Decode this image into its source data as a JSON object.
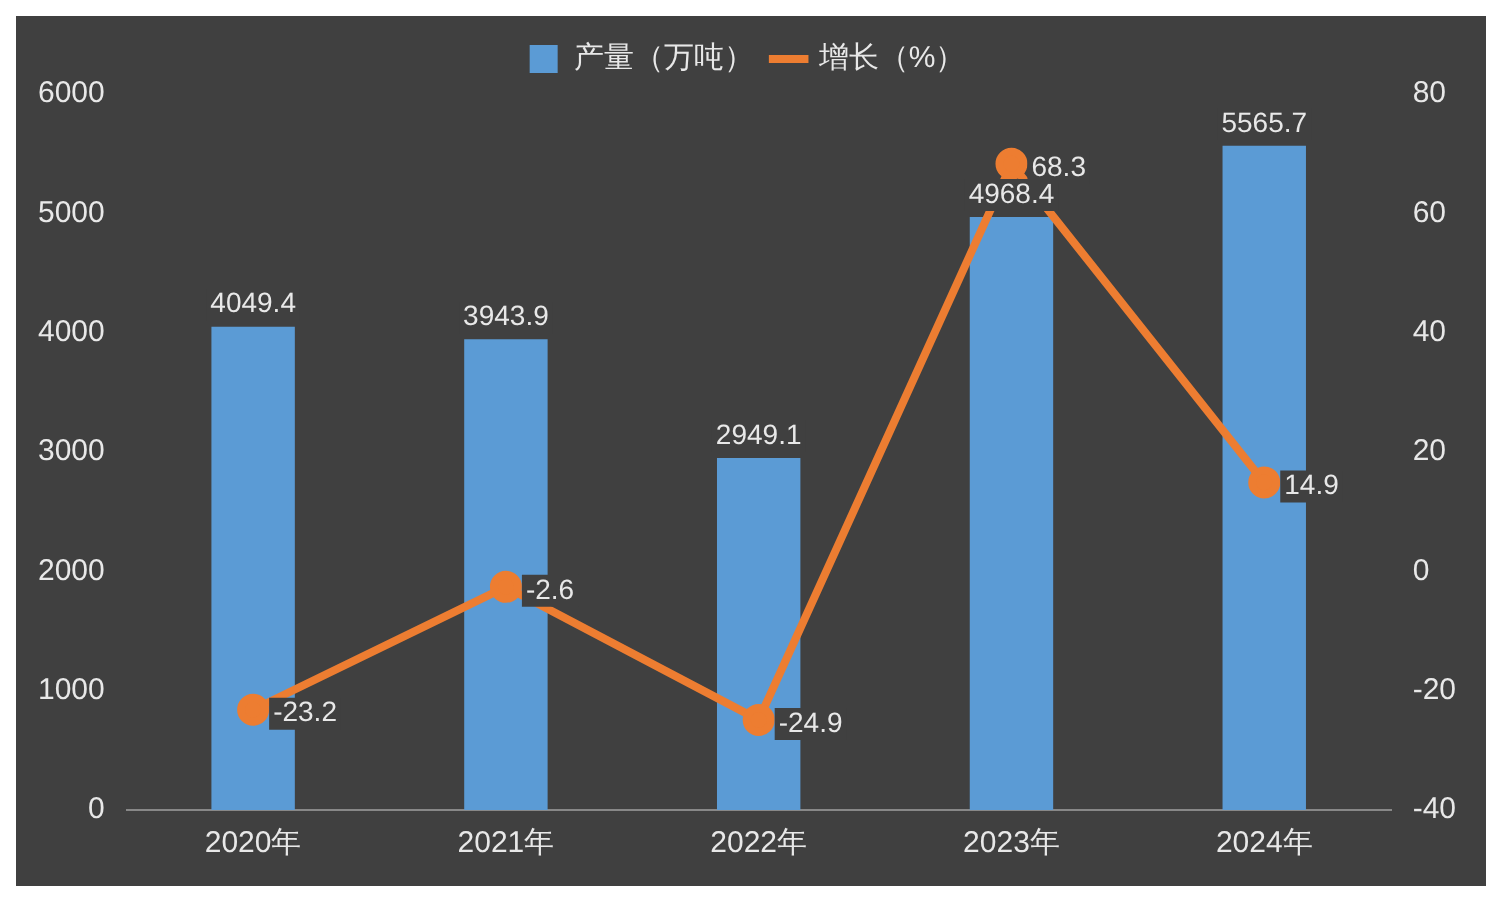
{
  "chart_data": {
    "type": "bar",
    "categories": [
      "2020年",
      "2021年",
      "2022年",
      "2023年",
      "2024年"
    ],
    "series": [
      {
        "name": "产量（万吨）",
        "color": "#5b9bd5",
        "values": [
          4049.4,
          3943.9,
          2949.1,
          4968.4,
          5565.7
        ]
      },
      {
        "name": "增长（%）",
        "type": "line",
        "axis": "y2",
        "color": "#ed7d31",
        "values": [
          -23.2,
          -2.6,
          -24.9,
          68.3,
          14.9
        ]
      }
    ],
    "ylim": [
      0,
      6000
    ],
    "yticks": [
      0,
      1000,
      2000,
      3000,
      4000,
      5000,
      6000
    ],
    "y2lim": [
      -40,
      80
    ],
    "y2ticks": [
      -40,
      -20,
      0,
      20,
      40,
      60,
      80
    ],
    "data_labels": true,
    "legend": "top",
    "grid": false,
    "marker": "circle",
    "line_style": "solid"
  }
}
